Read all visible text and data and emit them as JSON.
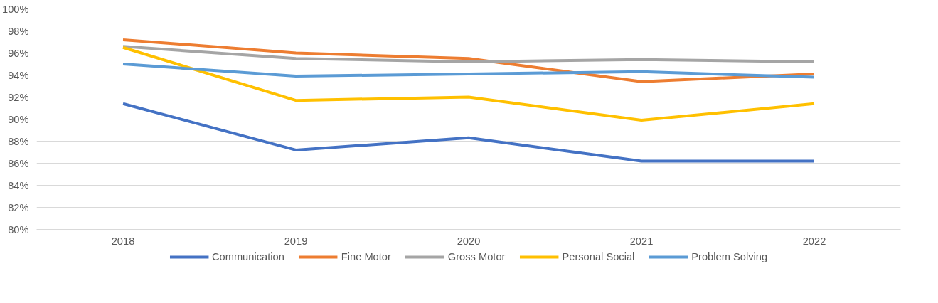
{
  "chart_data": {
    "type": "line",
    "categories": [
      "2018",
      "2019",
      "2020",
      "2021",
      "2022"
    ],
    "series": [
      {
        "name": "Communication",
        "color": "#4472c4",
        "values": [
          91.4,
          87.2,
          88.3,
          86.2,
          86.2
        ]
      },
      {
        "name": "Fine Motor",
        "color": "#ed7d31",
        "values": [
          97.2,
          96.0,
          95.5,
          93.4,
          94.1
        ]
      },
      {
        "name": "Gross Motor",
        "color": "#a5a5a5",
        "values": [
          96.6,
          95.5,
          95.2,
          95.4,
          95.2
        ]
      },
      {
        "name": "Personal Social",
        "color": "#ffc000",
        "values": [
          96.5,
          91.7,
          92.0,
          89.9,
          91.4
        ]
      },
      {
        "name": "Problem Solving",
        "color": "#5b9bd5",
        "values": [
          95.0,
          93.9,
          94.1,
          94.3,
          93.8
        ]
      }
    ],
    "ylim": [
      80,
      100
    ],
    "yticks": [
      {
        "value": 80,
        "label": "80%"
      },
      {
        "value": 82,
        "label": "82%"
      },
      {
        "value": 84,
        "label": "84%"
      },
      {
        "value": 86,
        "label": "86%"
      },
      {
        "value": 88,
        "label": "88%"
      },
      {
        "value": 90,
        "label": "90%"
      },
      {
        "value": 92,
        "label": "92%"
      },
      {
        "value": 94,
        "label": "94%"
      },
      {
        "value": 96,
        "label": "96%"
      },
      {
        "value": 98,
        "label": "98%"
      },
      {
        "value": 100,
        "label": "100%"
      }
    ],
    "grid": "y",
    "legend": "bottom",
    "marker": "none",
    "line_style": "solid"
  }
}
